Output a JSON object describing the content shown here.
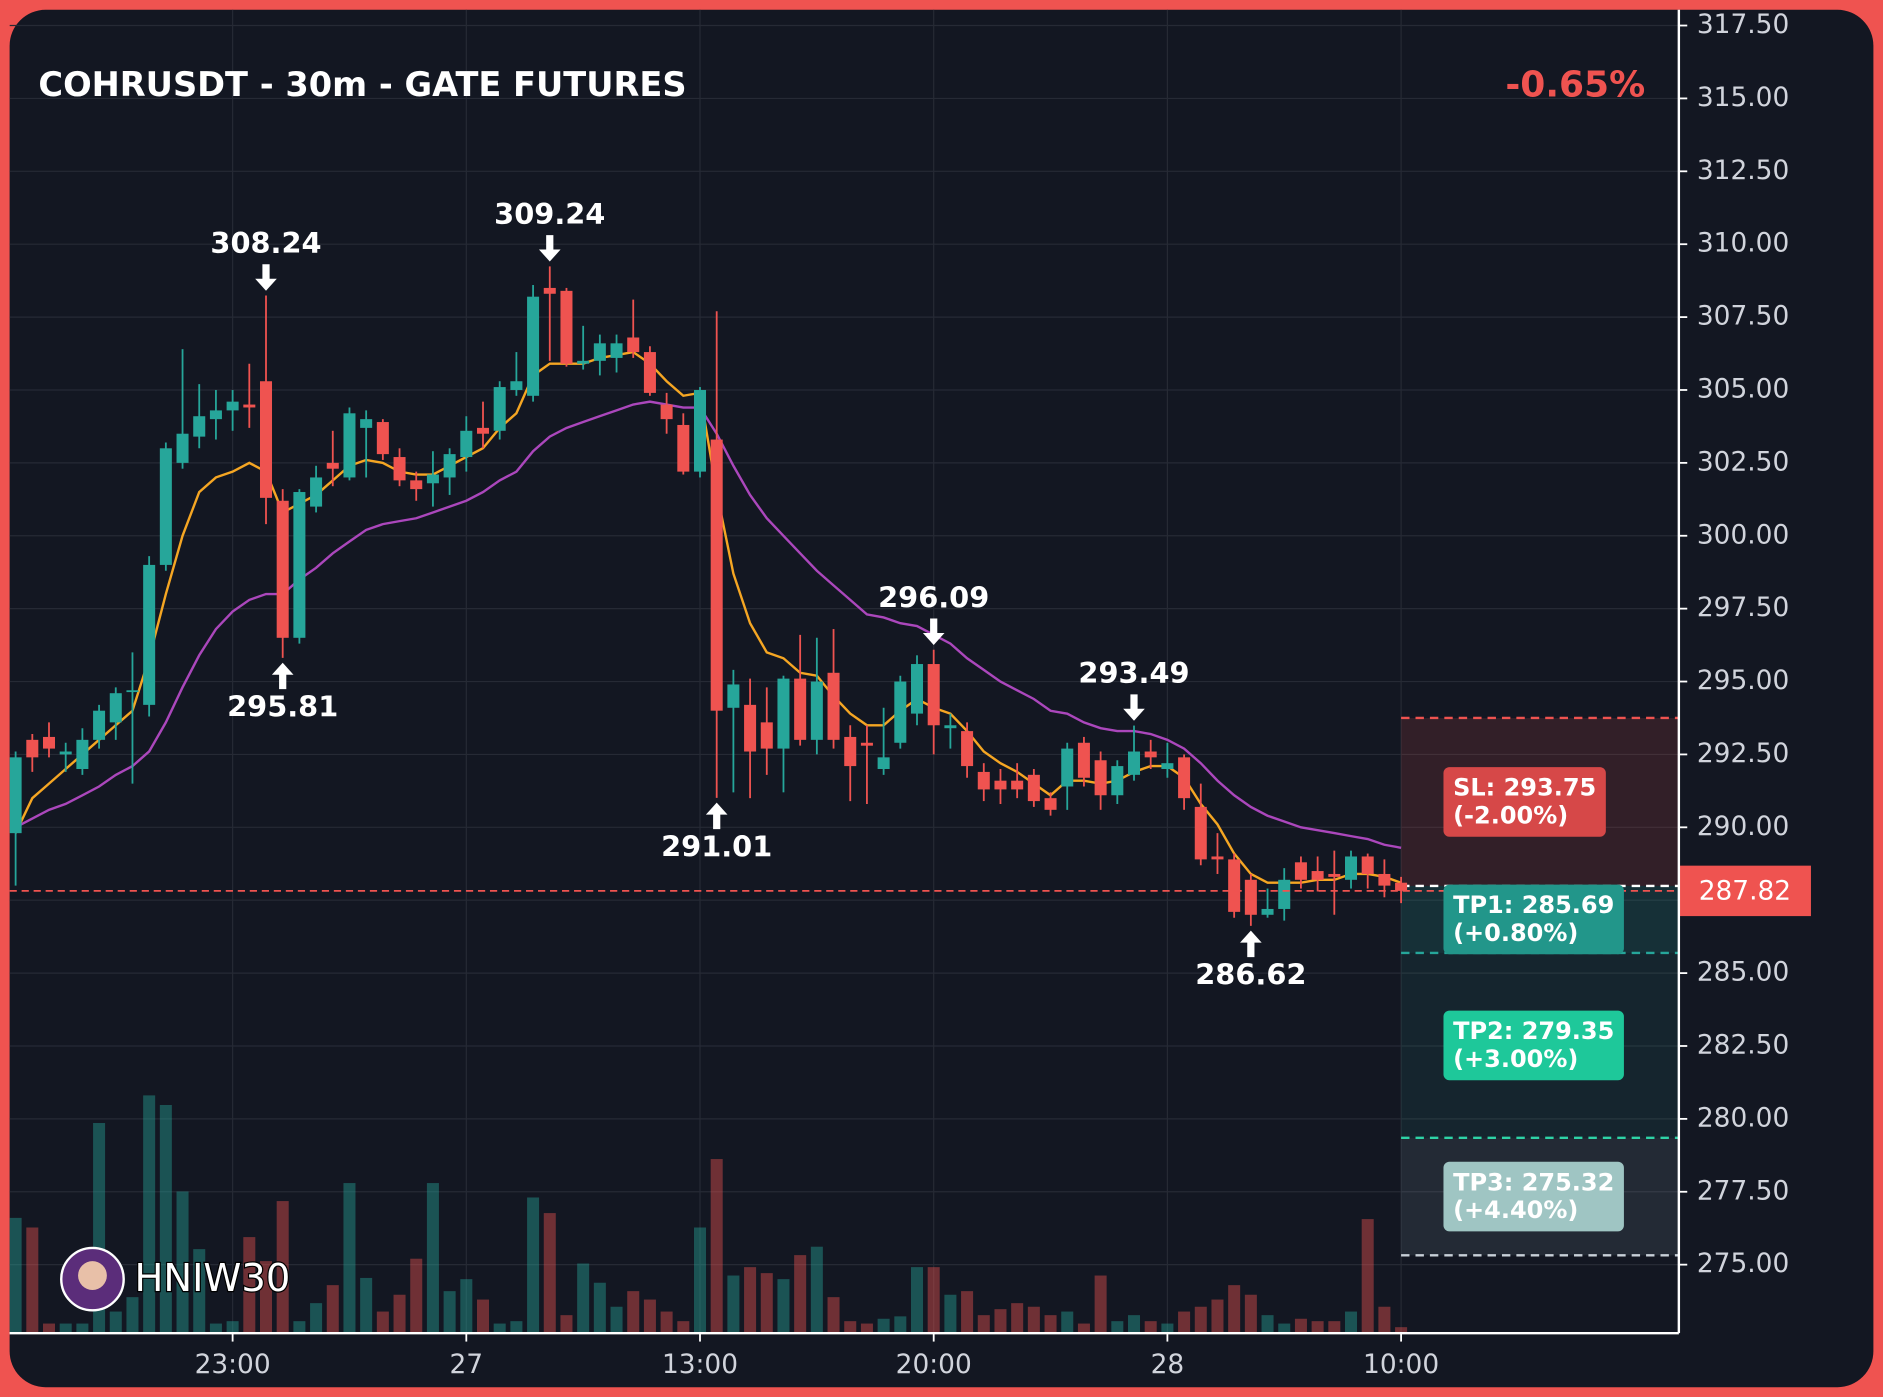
{
  "chart_data": {
    "type": "candlestick",
    "title": "COHRUSDT - 30m - GATE FUTURES",
    "change": -0.65,
    "change_label": "-0.65%",
    "watermark": "HNIW30",
    "up_color": "#26a69a",
    "down_color": "#ef5350",
    "xlim": [
      -0.36,
      99.64
    ],
    "xticks": [
      {
        "value": 13,
        "label": "23:00"
      },
      27,
      {
        "value": 41,
        "label": "13:00"
      },
      {
        "value": 55,
        "label": "20:00"
      },
      {
        "value": 69,
        "label": "28"
      },
      {
        "value": 83,
        "label": "10:00"
      }
    ],
    "ylim": [
      272.65,
      318.04
    ],
    "yticks": [
      {
        "value": 275,
        "label": "275.00"
      },
      {
        "value": 277.5,
        "label": "277.50"
      },
      {
        "value": 280,
        "label": "280.00"
      },
      {
        "value": 282.5,
        "label": "282.50"
      },
      {
        "value": 285,
        "label": "285.00"
      },
      {
        "value": 287.5,
        "label": "287.50"
      },
      {
        "value": 290,
        "label": "290.00"
      },
      {
        "value": 292.5,
        "label": "292.50"
      },
      {
        "value": 295,
        "label": "295.00"
      },
      {
        "value": 297.5,
        "label": "297.50"
      },
      {
        "value": 300,
        "label": "300.00"
      },
      {
        "value": 302.5,
        "label": "302.50"
      },
      {
        "value": 305,
        "label": "305.00"
      },
      {
        "value": 307.5,
        "label": "307.50"
      },
      {
        "value": 310,
        "label": "310.00"
      },
      {
        "value": 312.5,
        "label": "312.50"
      },
      {
        "value": 315,
        "label": "315.00"
      },
      {
        "value": 317.5,
        "label": "317.50"
      }
    ],
    "grid": true,
    "open": [
      289.8,
      293.0,
      293.1,
      292.5,
      292.0,
      293.0,
      293.6,
      294.7,
      294.2,
      299.0,
      302.5,
      303.4,
      304.0,
      304.3,
      304.5,
      305.3,
      301.2,
      296.5,
      301.0,
      302.5,
      302.0,
      303.7,
      303.9,
      302.7,
      301.9,
      301.8,
      302.0,
      302.7,
      303.7,
      303.6,
      305.0,
      304.8,
      308.5,
      308.4,
      305.9,
      306.0,
      306.1,
      306.8,
      306.3,
      304.5,
      303.8,
      302.2,
      303.3,
      294.1,
      294.2,
      293.6,
      292.7,
      295.1,
      293.0,
      295.3,
      293.1,
      292.9,
      292.0,
      292.9,
      293.9,
      295.6,
      293.4,
      293.3,
      291.9,
      291.6,
      291.6,
      291.8,
      291.0,
      291.4,
      292.9,
      292.3,
      291.1,
      291.8,
      292.6,
      292.0,
      292.4,
      290.7,
      289.0,
      288.9,
      288.2,
      287.0,
      287.2,
      288.8,
      288.5,
      288.4,
      288.2,
      289.0,
      288.4,
      288.1
    ],
    "high": [
      292.6,
      293.2,
      293.6,
      292.9,
      293.4,
      294.2,
      294.8,
      296.0,
      299.3,
      303.2,
      306.4,
      305.2,
      305.0,
      305.0,
      305.9,
      308.24,
      301.6,
      301.6,
      302.4,
      303.6,
      304.4,
      304.3,
      304.0,
      303.0,
      302.2,
      302.9,
      303.0,
      304.1,
      304.6,
      305.3,
      306.3,
      308.6,
      309.24,
      308.5,
      307.2,
      306.9,
      306.9,
      308.1,
      306.5,
      304.9,
      304.2,
      305.1,
      307.7,
      295.4,
      295.1,
      294.8,
      295.2,
      296.6,
      296.5,
      296.8,
      293.5,
      293.5,
      294.1,
      295.2,
      295.9,
      296.09,
      293.9,
      293.6,
      292.2,
      292.0,
      292.2,
      292.0,
      291.2,
      292.9,
      293.1,
      292.6,
      292.3,
      293.49,
      293.0,
      292.9,
      292.5,
      291.5,
      289.8,
      289.1,
      288.4,
      287.9,
      288.6,
      289.0,
      289.0,
      289.2,
      289.2,
      289.1,
      288.9,
      288.3
    ],
    "low": [
      288.0,
      291.9,
      292.4,
      291.9,
      291.8,
      292.7,
      293.0,
      291.5,
      293.8,
      298.8,
      302.3,
      303.0,
      303.3,
      303.6,
      303.7,
      300.4,
      295.81,
      296.3,
      300.8,
      301.7,
      301.9,
      302.0,
      302.6,
      301.7,
      301.2,
      301.0,
      301.4,
      302.2,
      303.0,
      303.3,
      304.8,
      304.6,
      306.0,
      305.8,
      305.7,
      305.5,
      305.6,
      306.1,
      304.8,
      303.5,
      302.1,
      302.0,
      291.01,
      291.2,
      291.0,
      291.8,
      291.2,
      292.8,
      292.5,
      292.7,
      290.9,
      290.8,
      291.8,
      292.7,
      293.5,
      292.5,
      292.7,
      291.7,
      290.9,
      290.8,
      291.0,
      290.7,
      290.4,
      290.6,
      291.4,
      290.6,
      290.8,
      291.6,
      292.0,
      291.7,
      290.6,
      288.7,
      288.4,
      286.9,
      286.62,
      286.9,
      286.8,
      287.9,
      287.8,
      287.0,
      287.9,
      287.9,
      287.6,
      287.4
    ],
    "close": [
      292.4,
      292.4,
      292.7,
      292.6,
      293.0,
      294.0,
      294.6,
      294.7,
      299.0,
      303.0,
      303.5,
      304.1,
      304.3,
      304.6,
      304.4,
      301.3,
      296.5,
      301.5,
      302.0,
      302.3,
      304.2,
      304.0,
      302.8,
      301.9,
      301.6,
      302.1,
      302.8,
      303.6,
      303.5,
      305.1,
      305.3,
      308.2,
      308.3,
      305.9,
      306.0,
      306.6,
      306.6,
      306.3,
      304.9,
      304.0,
      302.2,
      305.0,
      294.0,
      294.9,
      292.6,
      292.7,
      295.1,
      293.0,
      295.0,
      293.0,
      292.1,
      292.8,
      292.4,
      295.0,
      295.6,
      293.5,
      293.5,
      292.1,
      291.3,
      291.3,
      291.3,
      290.9,
      290.6,
      292.7,
      291.7,
      291.1,
      292.1,
      292.6,
      292.4,
      292.2,
      291.0,
      288.9,
      288.9,
      287.1,
      287.0,
      287.2,
      288.2,
      288.2,
      288.2,
      288.3,
      289.0,
      288.4,
      288.0,
      287.82
    ],
    "volume": [
      96,
      88,
      8,
      8,
      8,
      175,
      18,
      30,
      198,
      190,
      118,
      70,
      8,
      10,
      80,
      60,
      110,
      10,
      25,
      40,
      125,
      46,
      18,
      32,
      62,
      125,
      35,
      45,
      28,
      8,
      10,
      113,
      100,
      15,
      58,
      42,
      22,
      35,
      28,
      18,
      10,
      88,
      145,
      48,
      55,
      50,
      45,
      65,
      72,
      30,
      10,
      8,
      12,
      14,
      55,
      55,
      32,
      35,
      15,
      20,
      25,
      22,
      15,
      18,
      8,
      48,
      10,
      15,
      10,
      8,
      18,
      22,
      28,
      40,
      32,
      15,
      8,
      12,
      10,
      10,
      18,
      95,
      22,
      5
    ],
    "volume_lim": [
      0,
      200
    ],
    "lines": [
      {
        "color": "#f5a623",
        "values": [
          289.8,
          291.0,
          291.5,
          292.0,
          292.5,
          293.0,
          293.5,
          294.0,
          295.8,
          298.0,
          300.0,
          301.5,
          302.0,
          302.2,
          302.5,
          302.2,
          300.8,
          301.1,
          301.4,
          301.9,
          302.4,
          302.6,
          302.5,
          302.2,
          302.1,
          302.1,
          302.4,
          302.7,
          303.0,
          303.7,
          304.2,
          305.5,
          305.9,
          305.9,
          305.9,
          306.1,
          306.2,
          306.3,
          305.9,
          305.3,
          304.8,
          304.9,
          301.5,
          298.7,
          297.0,
          296.0,
          295.8,
          295.3,
          295.2,
          294.5,
          293.9,
          293.5,
          293.5,
          294.0,
          294.4,
          294.1,
          293.9,
          293.3,
          292.6,
          292.2,
          291.9,
          291.5,
          291.1,
          291.6,
          291.6,
          291.5,
          291.6,
          291.9,
          292.1,
          292.1,
          291.7,
          290.8,
          290.1,
          289.1,
          288.4,
          288.1,
          288.1,
          288.1,
          288.2,
          288.2,
          288.4,
          288.4,
          288.3,
          288.1
        ]
      },
      {
        "color": "#ab47bc",
        "values": [
          290.0,
          290.3,
          290.6,
          290.8,
          291.1,
          291.4,
          291.8,
          292.1,
          292.6,
          293.6,
          294.8,
          295.9,
          296.8,
          297.4,
          297.8,
          298.0,
          298.0,
          298.5,
          298.9,
          299.4,
          299.8,
          300.2,
          300.4,
          300.5,
          300.6,
          300.8,
          301.0,
          301.2,
          301.5,
          301.9,
          302.2,
          302.9,
          303.4,
          303.7,
          303.9,
          304.1,
          304.3,
          304.5,
          304.6,
          304.5,
          304.4,
          304.4,
          303.5,
          302.4,
          301.4,
          300.6,
          300.0,
          299.4,
          298.8,
          298.3,
          297.8,
          297.3,
          297.2,
          297.0,
          296.9,
          296.6,
          296.3,
          295.8,
          295.4,
          295.0,
          294.7,
          294.4,
          294.0,
          293.9,
          293.6,
          293.4,
          293.3,
          293.3,
          293.2,
          293.0,
          292.7,
          292.2,
          291.6,
          291.1,
          290.7,
          290.4,
          290.2,
          290.0,
          289.9,
          289.8,
          289.7,
          289.6,
          289.4,
          289.3
        ]
      }
    ],
    "high_markers": [
      15,
      32,
      55,
      67
    ],
    "low_markers": [
      16,
      42,
      74
    ],
    "entry": 287.99,
    "levels": [
      {
        "label": "SL: 293.75",
        "value": 293.75,
        "change": "(-2.00%)",
        "color": "#ef5350",
        "box": "#d64848",
        "zone": "rgba(239,83,80,0.14)"
      },
      {
        "label": "TP1: 285.69",
        "value": 285.69,
        "change": "(+0.80%)",
        "color": "#26a69a",
        "box": "#22968a",
        "zone": "rgba(38,166,154,0.18)"
      },
      {
        "label": "TP2: 279.35",
        "value": 279.35,
        "change": "(+3.00%)",
        "color": "#2ed3a6",
        "box": "#1ec89a",
        "zone": "rgba(38,166,154,0.10)"
      },
      {
        "label": "TP3: 275.32",
        "value": 275.32,
        "change": "(+4.40%)",
        "color": "#c8d0d8",
        "box": "#9fc5c3",
        "zone": "rgba(160,180,200,0.12)"
      }
    ]
  }
}
